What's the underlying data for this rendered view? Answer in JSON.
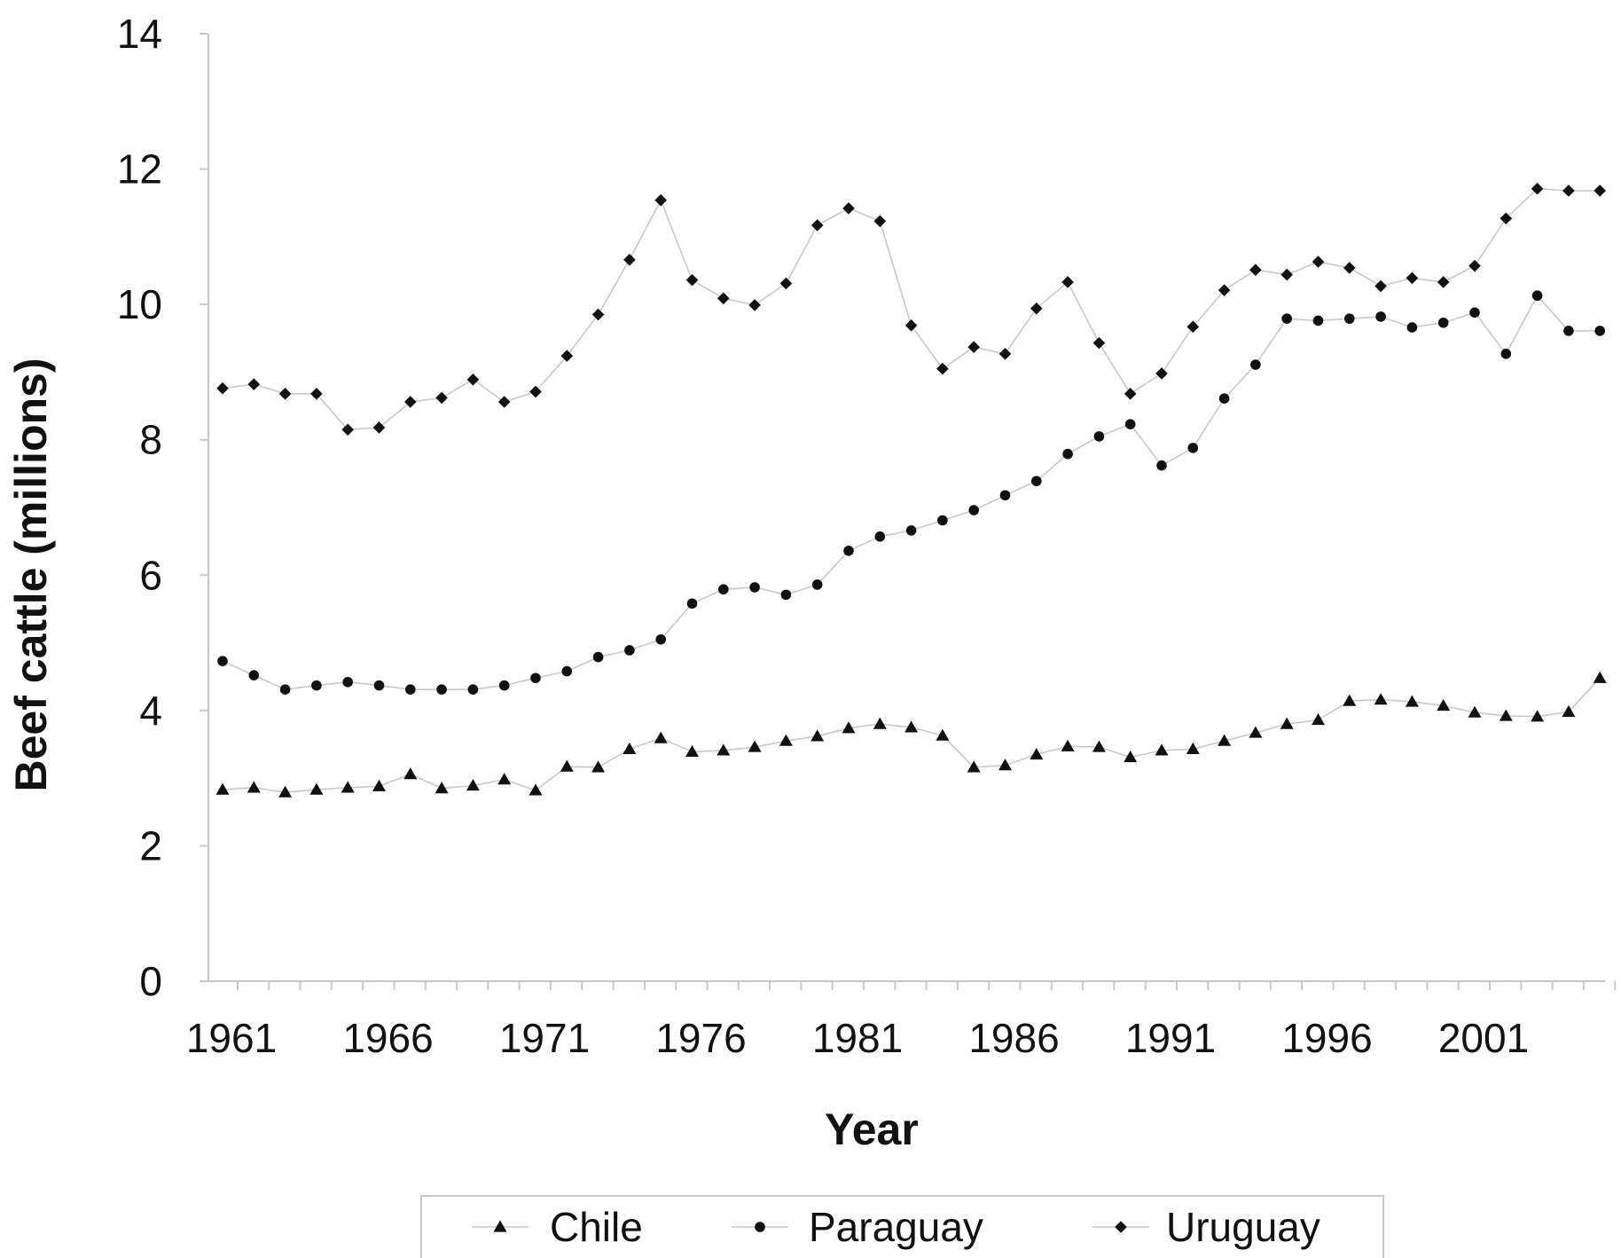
{
  "chart_data": {
    "type": "line",
    "title": "",
    "xlabel": "Year",
    "ylabel": "Beef cattle (millions)",
    "ylim": [
      0,
      14
    ],
    "yticks": [
      "0",
      "2",
      "4",
      "6",
      "8",
      "10",
      "12",
      "14"
    ],
    "xlim": [
      1961,
      2005
    ],
    "xticks": [
      "1961",
      "1966",
      "1971",
      "1976",
      "1981",
      "1986",
      "1991",
      "1996",
      "2001"
    ],
    "grid": false,
    "legend_position": "bottom",
    "x": [
      1961,
      1962,
      1963,
      1964,
      1965,
      1966,
      1967,
      1968,
      1969,
      1970,
      1971,
      1972,
      1973,
      1974,
      1975,
      1976,
      1977,
      1978,
      1979,
      1980,
      1981,
      1982,
      1983,
      1984,
      1985,
      1986,
      1987,
      1988,
      1989,
      1990,
      1991,
      1992,
      1993,
      1994,
      1995,
      1996,
      1997,
      1998,
      1999,
      2000,
      2001,
      2002,
      2003,
      2004,
      2005
    ],
    "series": [
      {
        "name": "Chile",
        "marker": "triangle",
        "values": [
          2.83,
          2.86,
          2.79,
          2.83,
          2.86,
          2.88,
          3.06,
          2.85,
          2.89,
          2.98,
          2.82,
          3.17,
          3.16,
          3.43,
          3.59,
          3.39,
          3.41,
          3.46,
          3.55,
          3.62,
          3.74,
          3.8,
          3.75,
          3.63,
          3.16,
          3.19,
          3.35,
          3.47,
          3.46,
          3.31,
          3.41,
          3.43,
          3.55,
          3.67,
          3.8,
          3.86,
          4.14,
          4.16,
          4.13,
          4.07,
          3.97,
          3.92,
          3.91,
          3.98,
          4.48
        ]
      },
      {
        "name": "Paraguay",
        "marker": "circle",
        "values": [
          4.73,
          4.52,
          4.31,
          4.37,
          4.42,
          4.37,
          4.31,
          4.31,
          4.31,
          4.37,
          4.48,
          4.58,
          4.79,
          4.89,
          5.05,
          5.58,
          5.79,
          5.82,
          5.71,
          5.86,
          6.36,
          6.57,
          6.66,
          6.81,
          6.96,
          7.18,
          7.39,
          7.79,
          8.05,
          8.23,
          7.62,
          7.88,
          8.61,
          9.11,
          9.79,
          9.76,
          9.79,
          9.82,
          9.66,
          9.73,
          9.88,
          9.27,
          10.13,
          9.61,
          9.61
        ]
      },
      {
        "name": "Uruguay",
        "marker": "diamond",
        "values": [
          8.76,
          8.82,
          8.68,
          8.68,
          8.15,
          8.18,
          8.56,
          8.62,
          8.89,
          8.56,
          8.71,
          9.24,
          9.85,
          10.66,
          11.54,
          10.36,
          10.09,
          9.99,
          10.31,
          11.17,
          11.42,
          11.23,
          9.69,
          9.05,
          9.37,
          9.27,
          9.94,
          10.33,
          9.43,
          8.68,
          8.98,
          9.67,
          10.21,
          10.51,
          10.44,
          10.63,
          10.54,
          10.27,
          10.39,
          10.33,
          10.57,
          11.27,
          11.71,
          11.68,
          11.68
        ]
      }
    ]
  }
}
